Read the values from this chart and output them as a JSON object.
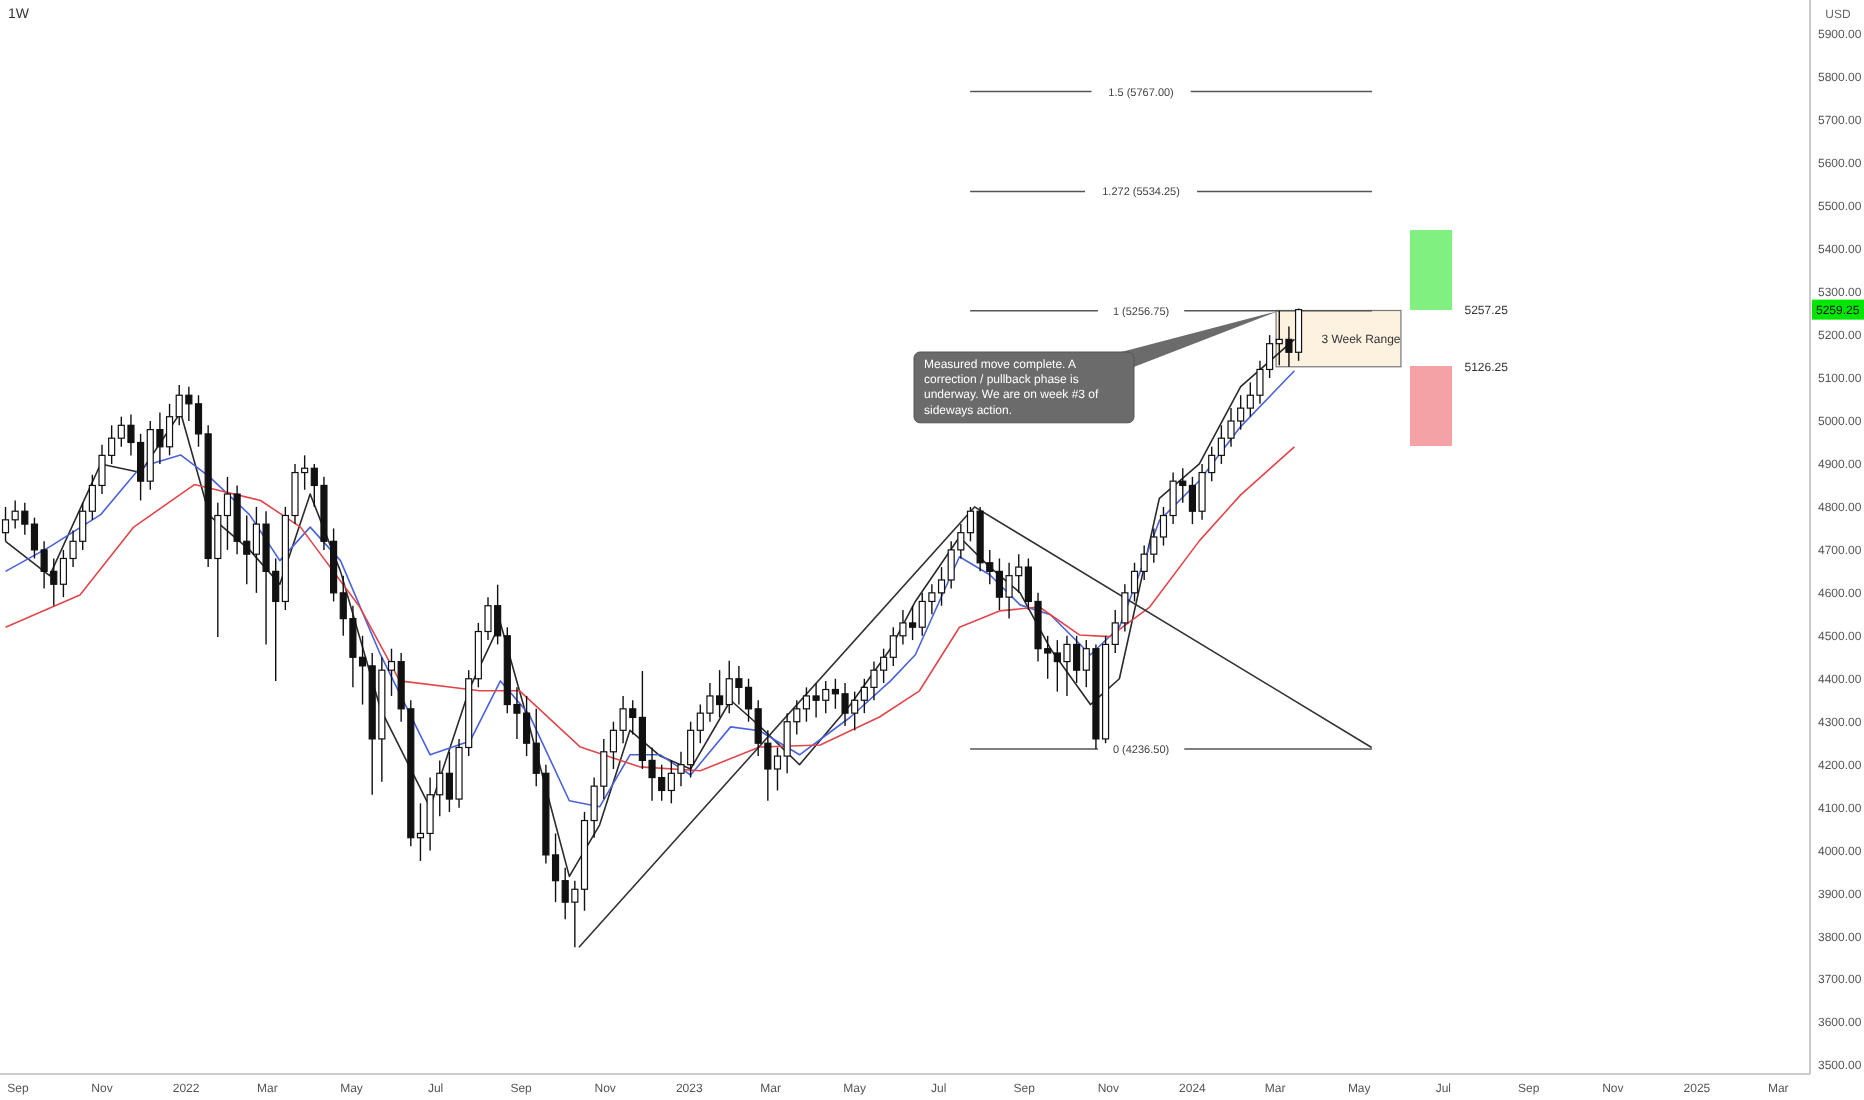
{
  "chart_data": {
    "type": "candlestick",
    "title": "1W",
    "x": [
      "2021-08-23",
      "2021-08-30",
      "2021-09-06",
      "2021-09-13",
      "2021-09-20",
      "2021-09-27",
      "2021-10-04",
      "2021-10-11",
      "2021-10-18",
      "2021-10-25",
      "2021-11-01",
      "2021-11-08",
      "2021-11-15",
      "2021-11-22",
      "2021-11-29",
      "2021-12-06",
      "2021-12-13",
      "2021-12-20",
      "2021-12-27",
      "2022-01-03",
      "2022-01-10",
      "2022-01-17",
      "2022-01-24",
      "2022-01-31",
      "2022-02-07",
      "2022-02-14",
      "2022-02-21",
      "2022-02-28",
      "2022-03-07",
      "2022-03-14",
      "2022-03-21",
      "2022-03-28",
      "2022-04-04",
      "2022-04-11",
      "2022-04-18",
      "2022-04-25",
      "2022-05-02",
      "2022-05-09",
      "2022-05-16",
      "2022-05-23",
      "2022-05-30",
      "2022-06-06",
      "2022-06-13",
      "2022-06-20",
      "2022-06-27",
      "2022-07-04",
      "2022-07-11",
      "2022-07-18",
      "2022-07-25",
      "2022-08-01",
      "2022-08-08",
      "2022-08-15",
      "2022-08-22",
      "2022-08-29",
      "2022-09-05",
      "2022-09-12",
      "2022-09-19",
      "2022-09-26",
      "2022-10-03",
      "2022-10-10",
      "2022-10-17",
      "2022-10-24",
      "2022-10-31",
      "2022-11-07",
      "2022-11-14",
      "2022-11-21",
      "2022-11-28",
      "2022-12-05",
      "2022-12-12",
      "2022-12-19",
      "2022-12-26",
      "2023-01-02",
      "2023-01-09",
      "2023-01-16",
      "2023-01-23",
      "2023-01-30",
      "2023-02-06",
      "2023-02-13",
      "2023-02-20",
      "2023-02-27",
      "2023-03-06",
      "2023-03-13",
      "2023-03-20",
      "2023-03-27",
      "2023-04-03",
      "2023-04-10",
      "2023-04-17",
      "2023-04-24",
      "2023-05-01",
      "2023-05-08",
      "2023-05-15",
      "2023-05-22",
      "2023-05-29",
      "2023-06-05",
      "2023-06-12",
      "2023-06-19",
      "2023-06-26",
      "2023-07-03",
      "2023-07-10",
      "2023-07-17",
      "2023-07-24",
      "2023-07-31",
      "2023-08-07",
      "2023-08-14",
      "2023-08-21",
      "2023-08-28",
      "2023-09-04",
      "2023-09-11",
      "2023-09-18",
      "2023-09-25",
      "2023-10-02",
      "2023-10-09",
      "2023-10-16",
      "2023-10-23",
      "2023-10-30",
      "2023-11-06",
      "2023-11-13",
      "2023-11-20",
      "2023-11-27",
      "2023-12-04",
      "2023-12-11",
      "2023-12-18",
      "2023-12-25",
      "2024-01-01",
      "2024-01-08",
      "2024-01-15",
      "2024-01-22",
      "2024-01-29",
      "2024-02-05",
      "2024-02-12",
      "2024-02-19",
      "2024-02-26",
      "2024-03-04",
      "2024-03-11",
      "2024-03-18"
    ],
    "ohlc": [
      [
        4740,
        4800,
        4720,
        4770
      ],
      [
        4770,
        4815,
        4750,
        4790
      ],
      [
        4790,
        4810,
        4735,
        4760
      ],
      [
        4760,
        4775,
        4680,
        4700
      ],
      [
        4700,
        4720,
        4610,
        4650
      ],
      [
        4650,
        4680,
        4570,
        4620
      ],
      [
        4620,
        4700,
        4590,
        4680
      ],
      [
        4680,
        4745,
        4660,
        4720
      ],
      [
        4720,
        4810,
        4700,
        4790
      ],
      [
        4790,
        4875,
        4770,
        4850
      ],
      [
        4850,
        4945,
        4830,
        4920
      ],
      [
        4920,
        4990,
        4900,
        4960
      ],
      [
        4960,
        5010,
        4940,
        4990
      ],
      [
        4990,
        5015,
        4920,
        4950
      ],
      [
        4950,
        4970,
        4815,
        4860
      ],
      [
        4860,
        5000,
        4840,
        4980
      ],
      [
        4980,
        5020,
        4900,
        4940
      ],
      [
        4940,
        5040,
        4920,
        5010
      ],
      [
        5010,
        5084,
        4990,
        5060
      ],
      [
        5060,
        5080,
        5000,
        5040
      ],
      [
        5040,
        5060,
        4940,
        4970
      ],
      [
        4970,
        4990,
        4660,
        4680
      ],
      [
        4680,
        4810,
        4497,
        4780
      ],
      [
        4780,
        4870,
        4700,
        4830
      ],
      [
        4830,
        4850,
        4690,
        4720
      ],
      [
        4720,
        4780,
        4620,
        4690
      ],
      [
        4690,
        4800,
        4600,
        4760
      ],
      [
        4760,
        4790,
        4480,
        4650
      ],
      [
        4650,
        4680,
        4395,
        4580
      ],
      [
        4580,
        4800,
        4560,
        4780
      ],
      [
        4780,
        4900,
        4760,
        4880
      ],
      [
        4880,
        4920,
        4840,
        4890
      ],
      [
        4890,
        4900,
        4800,
        4850
      ],
      [
        4850,
        4870,
        4700,
        4720
      ],
      [
        4720,
        4750,
        4580,
        4600
      ],
      [
        4600,
        4640,
        4500,
        4540
      ],
      [
        4540,
        4570,
        4380,
        4450
      ],
      [
        4450,
        4500,
        4340,
        4430
      ],
      [
        4430,
        4460,
        4130,
        4260
      ],
      [
        4260,
        4450,
        4160,
        4420
      ],
      [
        4420,
        4470,
        4360,
        4440
      ],
      [
        4440,
        4460,
        4300,
        4330
      ],
      [
        4330,
        4350,
        4010,
        4030
      ],
      [
        4030,
        4110,
        3976,
        4040
      ],
      [
        4040,
        4170,
        4000,
        4130
      ],
      [
        4130,
        4210,
        4080,
        4180
      ],
      [
        4180,
        4230,
        4090,
        4120
      ],
      [
        4120,
        4260,
        4100,
        4240
      ],
      [
        4240,
        4420,
        4220,
        4400
      ],
      [
        4400,
        4530,
        4380,
        4510
      ],
      [
        4510,
        4590,
        4490,
        4570
      ],
      [
        4570,
        4619,
        4480,
        4500
      ],
      [
        4500,
        4520,
        4320,
        4340
      ],
      [
        4340,
        4380,
        4260,
        4320
      ],
      [
        4320,
        4360,
        4220,
        4250
      ],
      [
        4250,
        4330,
        4150,
        4180
      ],
      [
        4180,
        4200,
        3970,
        3990
      ],
      [
        3990,
        4040,
        3880,
        3930
      ],
      [
        3930,
        3960,
        3840,
        3880
      ],
      [
        3880,
        3930,
        3775,
        3910
      ],
      [
        3910,
        4090,
        3860,
        4070
      ],
      [
        4070,
        4170,
        4030,
        4150
      ],
      [
        4150,
        4260,
        4120,
        4230
      ],
      [
        4230,
        4300,
        4190,
        4280
      ],
      [
        4280,
        4360,
        4250,
        4330
      ],
      [
        4330,
        4350,
        4270,
        4310
      ],
      [
        4310,
        4418,
        4190,
        4210
      ],
      [
        4210,
        4240,
        4116,
        4170
      ],
      [
        4170,
        4200,
        4116,
        4140
      ],
      [
        4140,
        4210,
        4110,
        4180
      ],
      [
        4180,
        4230,
        4150,
        4200
      ],
      [
        4200,
        4300,
        4170,
        4280
      ],
      [
        4280,
        4340,
        4250,
        4320
      ],
      [
        4320,
        4390,
        4300,
        4360
      ],
      [
        4360,
        4420,
        4310,
        4340
      ],
      [
        4340,
        4442,
        4320,
        4400
      ],
      [
        4400,
        4430,
        4340,
        4380
      ],
      [
        4380,
        4400,
        4300,
        4330
      ],
      [
        4330,
        4350,
        4220,
        4250
      ],
      [
        4250,
        4280,
        4116,
        4190
      ],
      [
        4190,
        4240,
        4140,
        4220
      ],
      [
        4220,
        4320,
        4180,
        4300
      ],
      [
        4300,
        4350,
        4270,
        4330
      ],
      [
        4330,
        4380,
        4300,
        4360
      ],
      [
        4360,
        4390,
        4310,
        4350
      ],
      [
        4350,
        4395,
        4320,
        4375
      ],
      [
        4375,
        4400,
        4330,
        4365
      ],
      [
        4365,
        4390,
        4290,
        4320
      ],
      [
        4320,
        4370,
        4280,
        4350
      ],
      [
        4350,
        4400,
        4320,
        4380
      ],
      [
        4380,
        4440,
        4350,
        4420
      ],
      [
        4420,
        4470,
        4390,
        4450
      ],
      [
        4450,
        4520,
        4430,
        4500
      ],
      [
        4500,
        4560,
        4480,
        4530
      ],
      [
        4530,
        4570,
        4490,
        4520
      ],
      [
        4520,
        4600,
        4500,
        4580
      ],
      [
        4580,
        4620,
        4550,
        4600
      ],
      [
        4600,
        4660,
        4570,
        4630
      ],
      [
        4630,
        4720,
        4610,
        4700
      ],
      [
        4700,
        4760,
        4680,
        4740
      ],
      [
        4740,
        4800,
        4720,
        4790
      ],
      [
        4790,
        4800,
        4650,
        4670
      ],
      [
        4670,
        4700,
        4620,
        4650
      ],
      [
        4650,
        4680,
        4560,
        4590
      ],
      [
        4590,
        4670,
        4540,
        4640
      ],
      [
        4640,
        4690,
        4600,
        4660
      ],
      [
        4660,
        4680,
        4560,
        4580
      ],
      [
        4580,
        4600,
        4440,
        4470
      ],
      [
        4470,
        4500,
        4400,
        4460
      ],
      [
        4460,
        4490,
        4370,
        4440
      ],
      [
        4440,
        4500,
        4360,
        4480
      ],
      [
        4480,
        4500,
        4390,
        4420
      ],
      [
        4420,
        4490,
        4380,
        4470
      ],
      [
        4470,
        4480,
        4236.5,
        4260
      ],
      [
        4260,
        4500,
        4250,
        4480
      ],
      [
        4480,
        4560,
        4460,
        4530
      ],
      [
        4530,
        4620,
        4510,
        4600
      ],
      [
        4600,
        4670,
        4580,
        4650
      ],
      [
        4650,
        4710,
        4630,
        4690
      ],
      [
        4690,
        4750,
        4670,
        4730
      ],
      [
        4730,
        4800,
        4710,
        4780
      ],
      [
        4780,
        4880,
        4760,
        4860
      ],
      [
        4860,
        4890,
        4810,
        4850
      ],
      [
        4850,
        4870,
        4760,
        4790
      ],
      [
        4790,
        4900,
        4770,
        4880
      ],
      [
        4880,
        4940,
        4860,
        4920
      ],
      [
        4920,
        4990,
        4900,
        4960
      ],
      [
        4960,
        5030,
        4940,
        5000
      ],
      [
        5000,
        5060,
        4980,
        5030
      ],
      [
        5030,
        5090,
        5010,
        5060
      ],
      [
        5060,
        5140,
        5040,
        5120
      ],
      [
        5120,
        5200,
        5100,
        5180
      ],
      [
        5180,
        5256.75,
        5130,
        5190
      ],
      [
        5190,
        5220,
        5126.25,
        5160
      ],
      [
        5160,
        5262,
        5140,
        5259.25
      ]
    ],
    "series": [
      {
        "type": "line",
        "color": "#2a2a2a",
        "x": [
          "2021-08-23",
          "2021-09-24",
          "2021-10-31",
          "2021-11-29",
          "2021-12-28",
          "2022-01-18",
          "2022-02-16",
          "2022-03-10",
          "2022-04-01",
          "2022-04-23",
          "2022-05-22",
          "2022-06-27",
          "2022-07-26",
          "2022-08-17",
          "2022-09-07",
          "2022-10-06",
          "2022-10-28",
          "2022-11-19",
          "2022-12-11",
          "2023-01-02",
          "2023-01-31",
          "2023-02-21",
          "2023-03-22",
          "2023-04-28",
          "2023-05-27",
          "2023-06-14",
          "2023-07-16",
          "2023-08-07",
          "2023-08-29",
          "2023-09-20",
          "2023-10-19",
          "2023-11-09",
          "2023-12-08",
          "2024-01-06",
          "2024-02-05",
          "2024-03-15"
        ],
        "values": [
          4720,
          4640,
          4900,
          4880,
          5020,
          4780,
          4700,
          4620,
          4830,
          4650,
          4330,
          4100,
          4380,
          4530,
          4290,
          3940,
          4060,
          4280,
          4220,
          4190,
          4350,
          4290,
          4200,
          4340,
          4470,
          4580,
          4730,
          4660,
          4600,
          4470,
          4340,
          4400,
          4820,
          4900,
          5080,
          5190
        ]
      },
      {
        "type": "line",
        "color": "#4a62d8",
        "x": [
          "2021-08-23",
          "2021-09-24",
          "2021-10-31",
          "2021-11-29",
          "2021-12-28",
          "2022-01-18",
          "2022-02-16",
          "2022-03-10",
          "2022-04-01",
          "2022-04-23",
          "2022-05-22",
          "2022-06-27",
          "2022-07-26",
          "2022-08-17",
          "2022-09-07",
          "2022-10-06",
          "2022-10-28",
          "2022-11-19",
          "2022-12-11",
          "2023-01-02",
          "2023-01-31",
          "2023-02-21",
          "2023-03-22",
          "2023-04-28",
          "2023-05-27",
          "2023-06-14",
          "2023-07-16",
          "2023-08-07",
          "2023-08-29",
          "2023-09-20",
          "2023-10-19",
          "2023-11-09",
          "2023-12-08",
          "2024-01-06",
          "2024-02-05",
          "2024-03-15"
        ],
        "values": [
          4650,
          4707,
          4782,
          4893,
          4921,
          4870,
          4782,
          4675,
          4753,
          4675,
          4456,
          4223,
          4255,
          4395,
          4316,
          4116,
          4102,
          4223,
          4223,
          4176,
          4288,
          4279,
          4223,
          4311,
          4395,
          4456,
          4684,
          4642,
          4572,
          4549,
          4456,
          4520,
          4768,
          4861,
          4987,
          5117
        ]
      },
      {
        "type": "line",
        "color": "#e0474c",
        "x": [
          "2021-08-23",
          "2021-10-16",
          "2021-11-24",
          "2022-01-07",
          "2022-02-24",
          "2022-03-25",
          "2022-05-07",
          "2022-06-05",
          "2022-08-02",
          "2022-08-31",
          "2022-10-14",
          "2022-11-26",
          "2023-01-09",
          "2023-02-21",
          "2023-04-06",
          "2023-05-19",
          "2023-06-17",
          "2023-07-16",
          "2023-08-14",
          "2023-09-12",
          "2023-10-11",
          "2023-11-02",
          "2023-12-01",
          "2024-01-06",
          "2024-02-05",
          "2024-03-15"
        ],
        "values": [
          4520,
          4595,
          4753,
          4852,
          4815,
          4753,
          4567,
          4395,
          4372,
          4372,
          4241,
          4195,
          4186,
          4241,
          4246,
          4311,
          4372,
          4520,
          4558,
          4567,
          4502,
          4498,
          4567,
          4721,
          4828,
          4940
        ]
      },
      {
        "type": "line",
        "color": "#333333",
        "x": [
          "2022-10-13",
          "2023-07-27",
          "2024-05-10"
        ],
        "values": [
          3775,
          4800,
          4240
        ]
      }
    ],
    "xlim": [
      "2021-08-19",
      "2025-03-24"
    ],
    "xticks": [
      {
        "value": "2021-09",
        "label": "Sep"
      },
      {
        "value": "2021-11",
        "label": "Nov"
      },
      {
        "value": "2022-01",
        "label": "2022"
      },
      {
        "value": "2022-03",
        "label": "Mar"
      },
      {
        "value": "2022-05",
        "label": "May"
      },
      {
        "value": "2022-07",
        "label": "Jul"
      },
      {
        "value": "2022-09",
        "label": "Sep"
      },
      {
        "value": "2022-11",
        "label": "Nov"
      },
      {
        "value": "2023-01",
        "label": "2023"
      },
      {
        "value": "2023-03",
        "label": "Mar"
      },
      {
        "value": "2023-05",
        "label": "May"
      },
      {
        "value": "2023-07",
        "label": "Jul"
      },
      {
        "value": "2023-09",
        "label": "Sep"
      },
      {
        "value": "2023-11",
        "label": "Nov"
      },
      {
        "value": "2024-01",
        "label": "2024"
      },
      {
        "value": "2024-03",
        "label": "Mar"
      },
      {
        "value": "2024-05",
        "label": "May"
      },
      {
        "value": "2024-07",
        "label": "Jul"
      },
      {
        "value": "2024-09",
        "label": "Sep"
      },
      {
        "value": "2024-11",
        "label": "Nov"
      },
      {
        "value": "2025-01",
        "label": "2025"
      },
      {
        "value": "2025-03",
        "label": "Mar"
      }
    ],
    "ylim": [
      3480,
      5980
    ],
    "yticks": [
      {
        "value": 3500,
        "label": "3500.00"
      },
      {
        "value": 3600,
        "label": "3600.00"
      },
      {
        "value": 3700,
        "label": "3700.00"
      },
      {
        "value": 3800,
        "label": "3800.00"
      },
      {
        "value": 3900,
        "label": "3900.00"
      },
      {
        "value": 4000,
        "label": "4000.00"
      },
      {
        "value": 4100,
        "label": "4100.00"
      },
      {
        "value": 4200,
        "label": "4200.00"
      },
      {
        "value": 4300,
        "label": "4300.00"
      },
      {
        "value": 4400,
        "label": "4400.00"
      },
      {
        "value": 4500,
        "label": "4500.00"
      },
      {
        "value": 4600,
        "label": "4600.00"
      },
      {
        "value": 4700,
        "label": "4700.00"
      },
      {
        "value": 4800,
        "label": "4800.00"
      },
      {
        "value": 4900,
        "label": "4900.00"
      },
      {
        "value": 5000,
        "label": "5000.00"
      },
      {
        "value": 5100,
        "label": "5100.00"
      },
      {
        "value": 5200,
        "label": "5200.00"
      },
      {
        "value": 5300,
        "label": "5300.00"
      },
      {
        "value": 5400,
        "label": "5400.00"
      },
      {
        "value": 5500,
        "label": "5500.00"
      },
      {
        "value": 5600,
        "label": "5600.00"
      },
      {
        "value": 5700,
        "label": "5700.00"
      },
      {
        "value": 5800,
        "label": "5800.00"
      },
      {
        "value": 5900,
        "label": "5900.00"
      }
    ],
    "ref_lines": [
      {
        "axis": "y",
        "value": 5767,
        "label": "1.5 (5767.00)",
        "color": "#555555"
      },
      {
        "axis": "y",
        "value": 5534.25,
        "label": "1.272 (5534.25)",
        "color": "#555555"
      },
      {
        "axis": "y",
        "value": 5256.75,
        "label": "1 (5256.75)",
        "color": "#555555"
      },
      {
        "axis": "y",
        "value": 4236.5,
        "label": "0 (4236.50)",
        "color": "#555555"
      }
    ],
    "bands": [
      {
        "axis": "y",
        "from": 5126.25,
        "to": 5257.25,
        "label": "3 Week Range",
        "color": "#fdf1e0"
      }
    ],
    "annotations": [
      {
        "text": "Measured move complete. A correction / pullback phase is underway. We are on week #3 of sideways action.",
        "x": "2024-03-04",
        "y": 5256.75
      },
      "5257.25",
      "5126.25",
      {
        "text": "5259.25",
        "y": 5259.25
      },
      "USD"
    ]
  }
}
